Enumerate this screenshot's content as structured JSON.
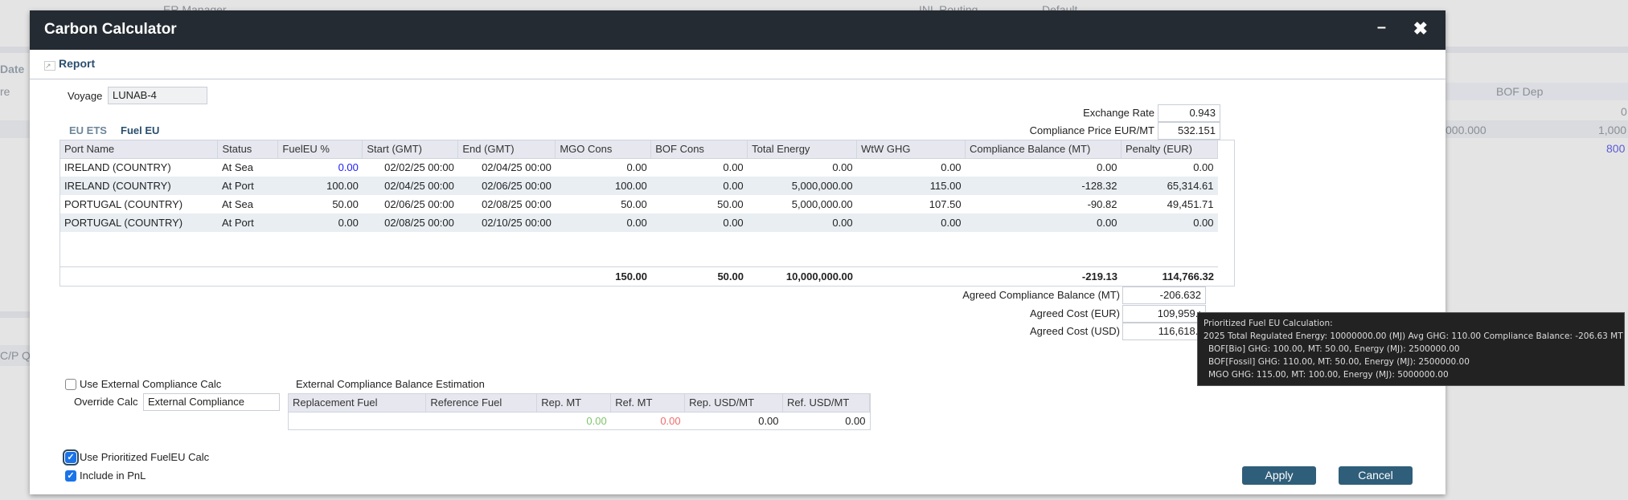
{
  "background": {
    "texts": [
      "ER Manager",
      "INL Routing",
      "Default",
      "Date",
      "re",
      "BOF Dep",
      "0",
      "000.000",
      "1,000",
      "800",
      "C/P Q"
    ]
  },
  "dialog": {
    "title": "Carbon Calculator",
    "minimize_icon": "minimize-icon",
    "close_icon": "close-icon",
    "report_label": "Report",
    "voyage_label": "Voyage",
    "voyage_value": "LUNAB-4",
    "exchange_rate_label": "Exchange Rate",
    "exchange_rate": "0.943",
    "compliance_price_label": "Compliance Price EUR/MT",
    "compliance_price": "532.151",
    "tabs": [
      {
        "label": "EU ETS",
        "active": false
      },
      {
        "label": "Fuel EU",
        "active": true
      }
    ],
    "grid": {
      "columns": [
        "Port Name",
        "Status",
        "FuelEU %",
        "Start (GMT)",
        "End (GMT)",
        "MGO Cons",
        "BOF Cons",
        "Total Energy",
        "WtW GHG",
        "Compliance Balance (MT)",
        "Penalty (EUR)"
      ],
      "rows": [
        [
          "IRELAND (COUNTRY)",
          "At Sea",
          "0.00",
          "02/02/25 00:00",
          "02/04/25 00:00",
          "0.00",
          "0.00",
          "0.00",
          "0.00",
          "0.00",
          "0.00"
        ],
        [
          "IRELAND (COUNTRY)",
          "At Port",
          "100.00",
          "02/04/25 00:00",
          "02/06/25 00:00",
          "100.00",
          "0.00",
          "5,000,000.00",
          "115.00",
          "-128.32",
          "65,314.61"
        ],
        [
          "PORTUGAL (COUNTRY)",
          "At Sea",
          "50.00",
          "02/06/25 00:00",
          "02/08/25 00:00",
          "50.00",
          "50.00",
          "5,000,000.00",
          "107.50",
          "-90.82",
          "49,451.71"
        ],
        [
          "PORTUGAL (COUNTRY)",
          "At Port",
          "0.00",
          "02/08/25 00:00",
          "02/10/25 00:00",
          "0.00",
          "0.00",
          "0.00",
          "0.00",
          "0.00",
          "0.00"
        ]
      ],
      "totals": {
        "mgo": "150.00",
        "bof": "50.00",
        "energy": "10,000,000.00",
        "balance": "-219.13",
        "penalty": "114,766.32"
      }
    },
    "agreed_balance_label": "Agreed Compliance Balance (MT)",
    "agreed_balance": "-206.632",
    "agreed_cost_eur_label": "Agreed Cost (EUR)",
    "agreed_cost_eur": "109,959.:",
    "agreed_cost_usd_label": "Agreed Cost (USD)",
    "agreed_cost_usd": "116,618.:",
    "use_external_label": "Use External Compliance Calc",
    "use_external_checked": false,
    "override_label": "Override Calc",
    "override_value": "External Compliance",
    "ext_title": "External Compliance Balance Estimation",
    "ext": {
      "columns": [
        "Replacement Fuel",
        "Reference Fuel",
        "Rep. MT",
        "Ref. MT",
        "Rep. USD/MT",
        "Ref. USD/MT"
      ],
      "row": [
        "",
        "",
        "0.00",
        "0.00",
        "0.00",
        "0.00"
      ],
      "rep_color": "#7dc46a",
      "ref_color": "#f06a6a"
    },
    "use_prioritized_label": "Use Prioritized FuelEU Calc",
    "use_prioritized_checked": true,
    "include_pnl_label": "Include in PnL",
    "include_pnl_checked": true,
    "apply": "Apply",
    "cancel": "Cancel"
  },
  "tooltip": {
    "lines": [
      "Prioritized Fuel EU Calculation:",
      "2025 Total Regulated Energy: 10000000.00 (MJ) Avg GHG: 110.00 Compliance Balance: -206.63 MT",
      "BOF[Bio] GHG: 100.00, MT: 50.00, Energy (MJ): 2500000.00",
      "BOF[Fossil] GHG: 110.00, MT: 50.00, Energy (MJ): 2500000.00",
      "MGO GHG: 115.00, MT: 100.00, Energy (MJ): 5000000.00"
    ]
  }
}
